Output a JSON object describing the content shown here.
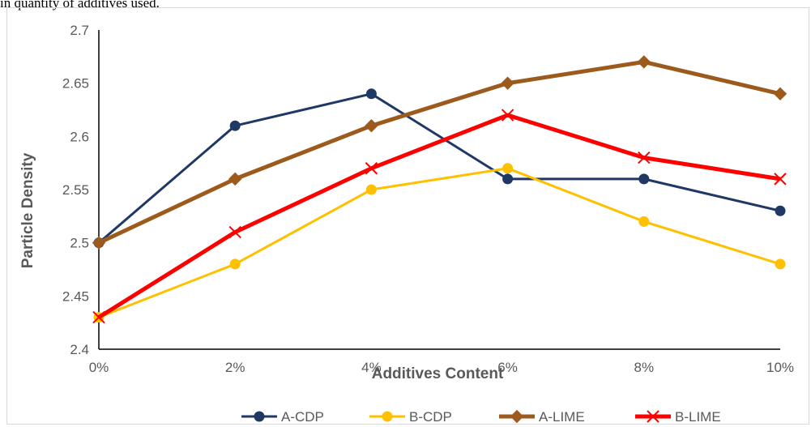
{
  "caption_fragment": "in quantity of additives used.",
  "chart_data": {
    "type": "line",
    "categories": [
      "0%",
      "2%",
      "4%",
      "6%",
      "8%",
      "10%"
    ],
    "xlabel": "Additives Content",
    "ylabel": "Particle Density",
    "ylim": [
      2.4,
      2.7
    ],
    "yticks": [
      "2.4",
      "2.45",
      "2.5",
      "2.55",
      "2.6",
      "2.65",
      "2.7"
    ],
    "grid": false,
    "legend_position": "bottom",
    "series": [
      {
        "name": "A-CDP",
        "values": [
          2.5,
          2.61,
          2.64,
          2.56,
          2.56,
          2.53
        ],
        "color": "#1f3864",
        "marker": "circle"
      },
      {
        "name": "B-CDP",
        "values": [
          2.43,
          2.48,
          2.55,
          2.57,
          2.52,
          2.48
        ],
        "color": "#ffc000",
        "marker": "circle"
      },
      {
        "name": "A-LIME",
        "values": [
          2.5,
          2.56,
          2.61,
          2.65,
          2.67,
          2.64
        ],
        "color": "#9c5b1c",
        "marker": "diamond"
      },
      {
        "name": "B-LIME",
        "values": [
          2.43,
          2.51,
          2.57,
          2.62,
          2.58,
          2.56
        ],
        "color": "#ff0000",
        "marker": "x"
      }
    ]
  }
}
